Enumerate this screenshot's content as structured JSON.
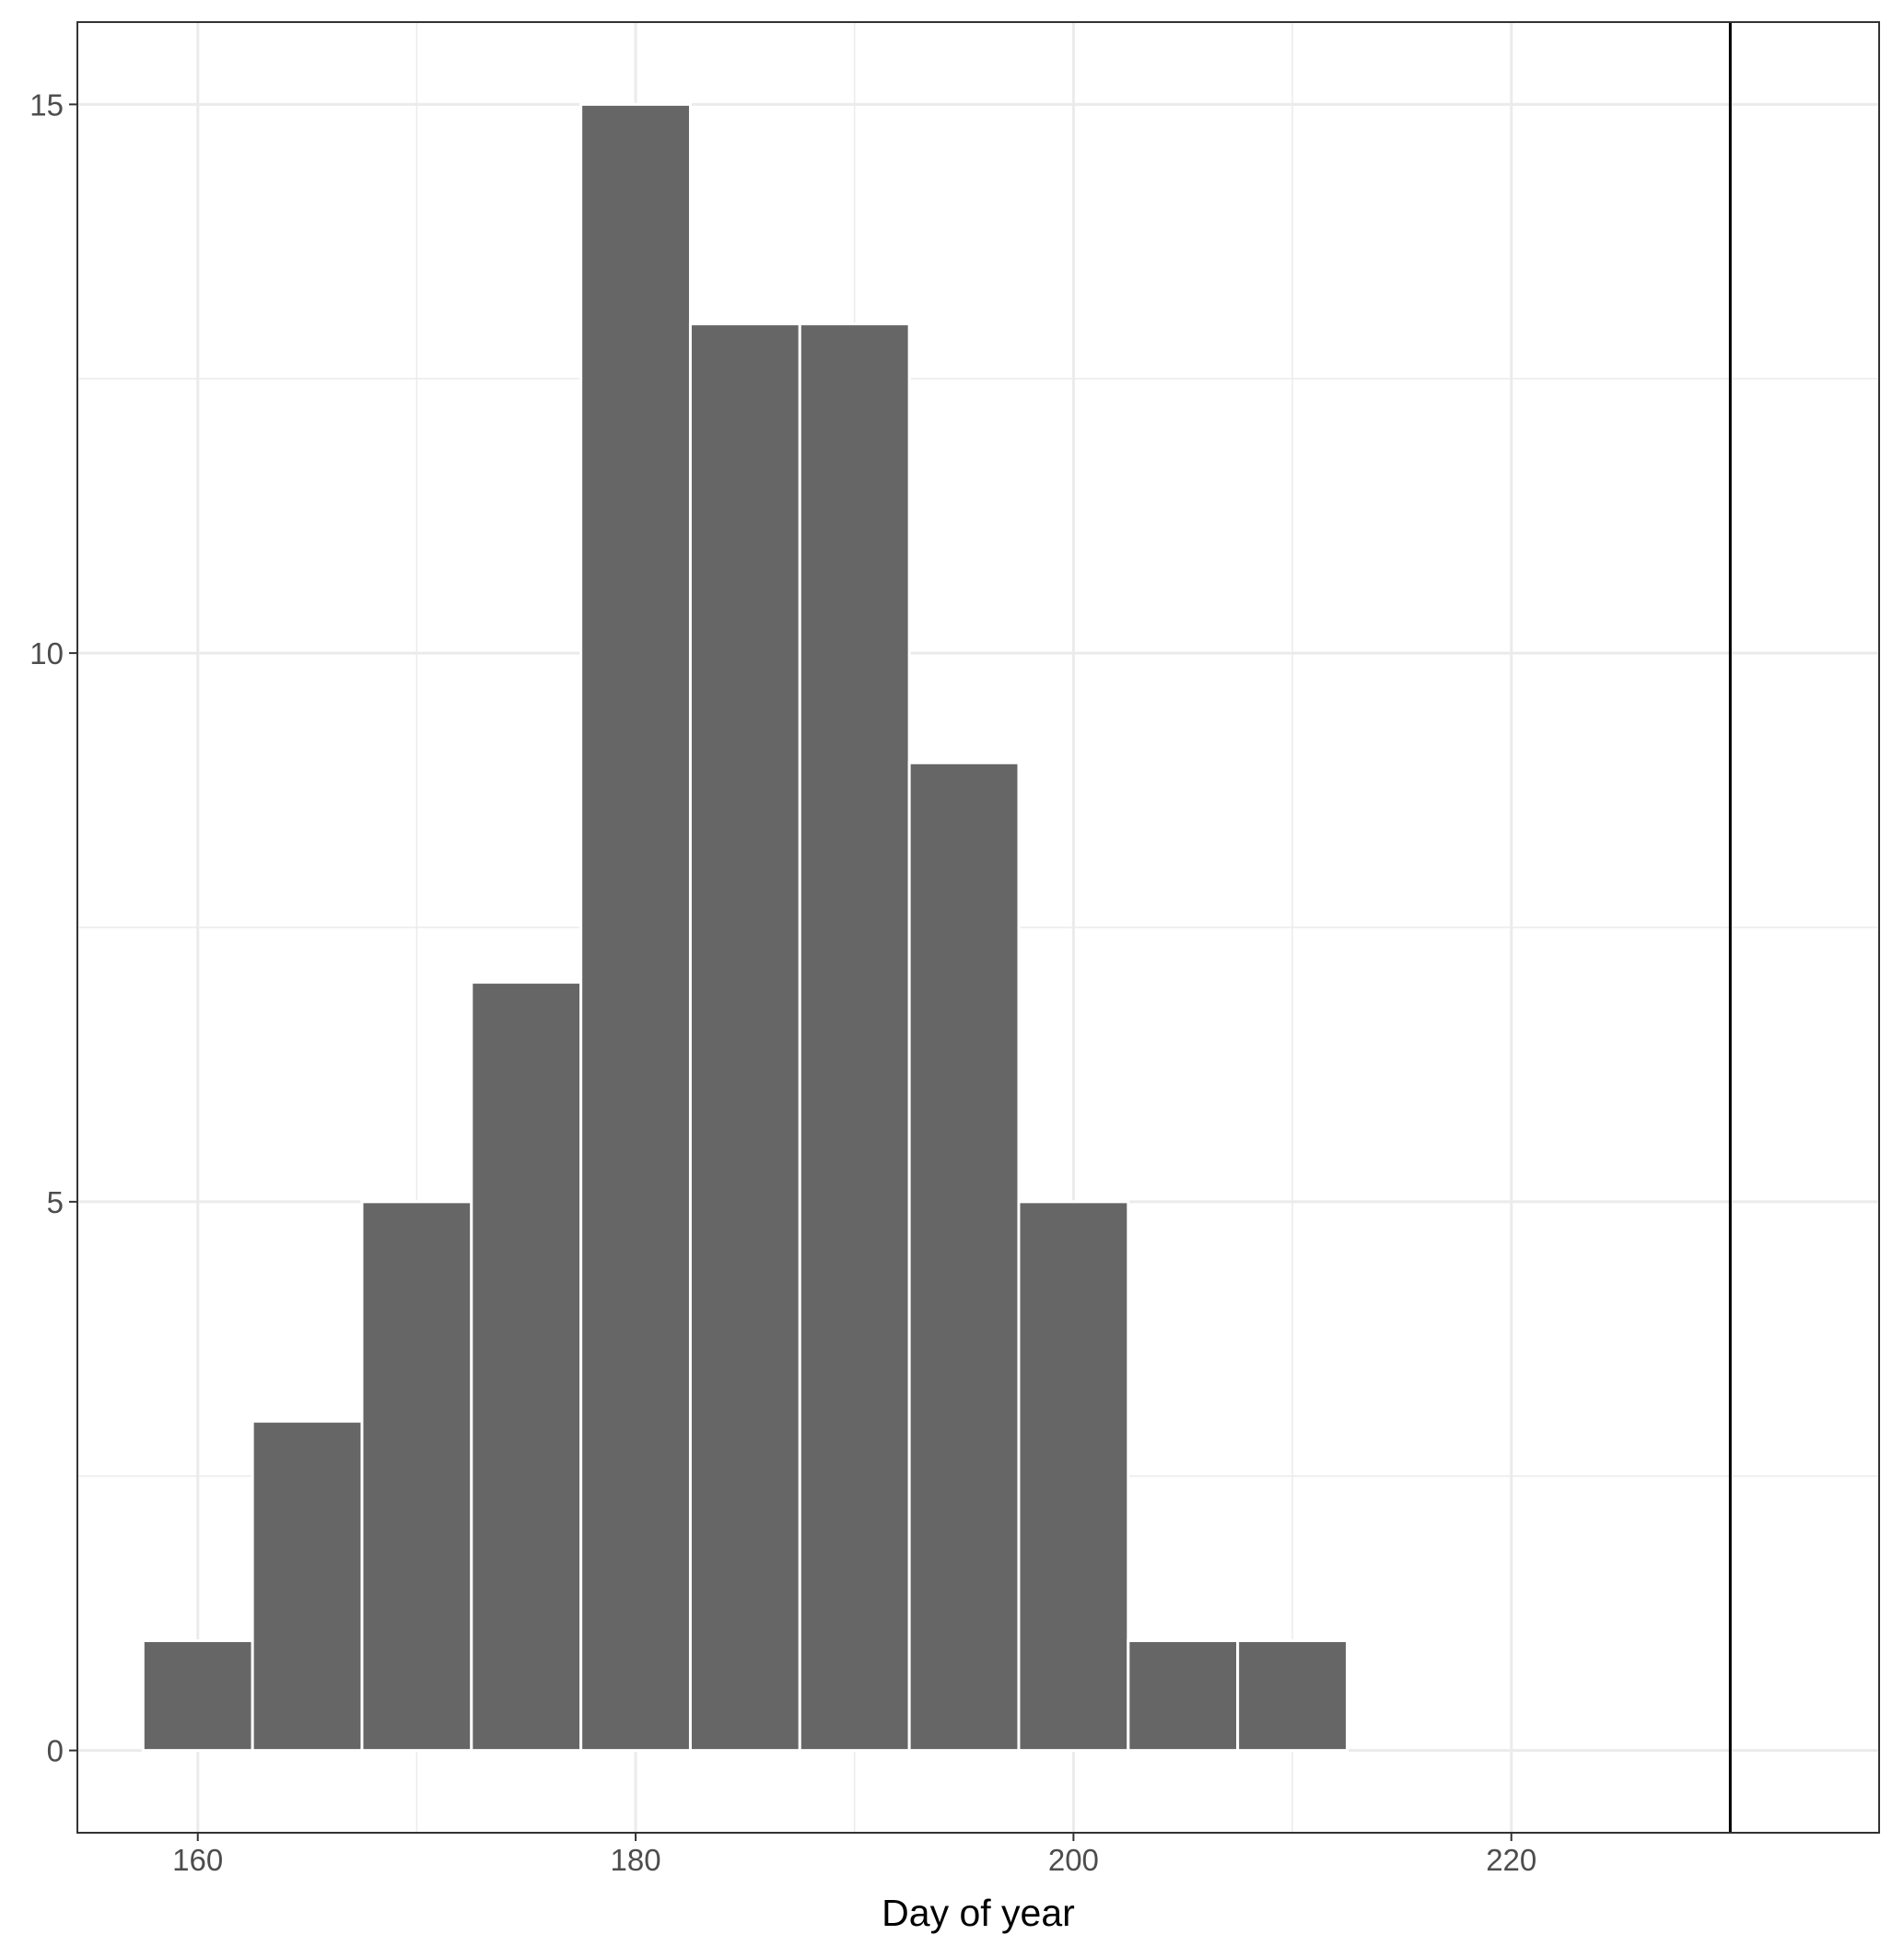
{
  "chart_data": {
    "type": "histogram",
    "xlabel": "Day of year",
    "ylabel": "",
    "title": "",
    "xlim": [
      154.5,
      236.8
    ],
    "ylim": [
      -0.75,
      15.75
    ],
    "x_ticks": [
      160,
      180,
      200,
      220
    ],
    "y_ticks": [
      0,
      5,
      10,
      15
    ],
    "bin_width": 5,
    "bins": [
      {
        "start": 157.5,
        "end": 162.5,
        "count": 1
      },
      {
        "start": 162.5,
        "end": 167.5,
        "count": 3
      },
      {
        "start": 167.5,
        "end": 172.5,
        "count": 5
      },
      {
        "start": 172.5,
        "end": 177.5,
        "count": 7
      },
      {
        "start": 177.5,
        "end": 182.5,
        "count": 15
      },
      {
        "start": 182.5,
        "end": 187.5,
        "count": 13
      },
      {
        "start": 187.5,
        "end": 192.5,
        "count": 13
      },
      {
        "start": 192.5,
        "end": 197.5,
        "count": 9
      },
      {
        "start": 197.5,
        "end": 202.5,
        "count": 5
      },
      {
        "start": 202.5,
        "end": 207.5,
        "count": 1
      },
      {
        "start": 207.5,
        "end": 212.5,
        "count": 1
      }
    ],
    "vline": {
      "x": 230
    },
    "grid": true,
    "theme": "bw",
    "bar_fill": "#666666",
    "bar_stroke": "#ffffff",
    "vline_color": "#000000",
    "grid_color": "#ebebeb",
    "panel_border_color": "#333333"
  }
}
